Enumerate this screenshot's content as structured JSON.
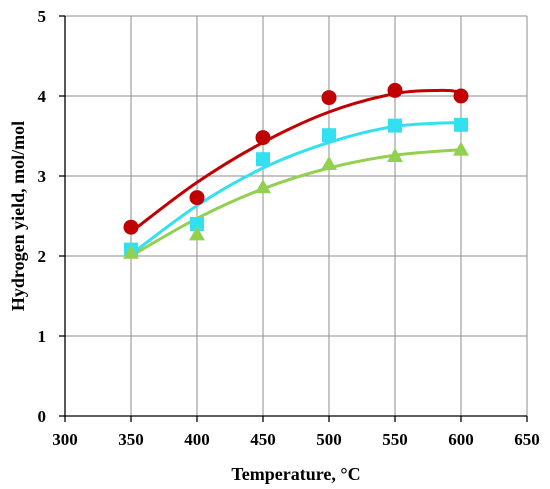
{
  "chart_data": {
    "type": "scatter",
    "xlabel": "Temperature, °C",
    "ylabel": "Hydrogen yield, mol/mol",
    "xlim": [
      300,
      650
    ],
    "ylim": [
      0,
      5
    ],
    "xticks": [
      300,
      350,
      400,
      450,
      500,
      550,
      600,
      650
    ],
    "yticks": [
      0,
      1,
      2,
      3,
      4,
      5
    ],
    "grid": true,
    "legend": "none",
    "series": [
      {
        "marker": "circle",
        "color": "#C00000",
        "x": [
          350,
          400,
          450,
          500,
          550,
          600
        ],
        "values": [
          2.36,
          2.73,
          3.48,
          3.98,
          4.07,
          4.0
        ],
        "trend": [
          [
            350,
            2.3
          ],
          [
            400,
            2.92
          ],
          [
            450,
            3.42
          ],
          [
            500,
            3.8
          ],
          [
            550,
            4.03
          ],
          [
            585,
            4.07
          ],
          [
            600,
            4.05
          ]
        ]
      },
      {
        "marker": "square",
        "color": "#33E0F0",
        "x": [
          350,
          400,
          450,
          500,
          550,
          600
        ],
        "values": [
          2.08,
          2.4,
          3.21,
          3.51,
          3.63,
          3.64
        ],
        "trend": [
          [
            350,
            2.02
          ],
          [
            400,
            2.63
          ],
          [
            450,
            3.1
          ],
          [
            500,
            3.42
          ],
          [
            550,
            3.62
          ],
          [
            600,
            3.67
          ]
        ]
      },
      {
        "marker": "triangle",
        "color": "#92D050",
        "x": [
          350,
          400,
          450,
          500,
          550,
          600
        ],
        "values": [
          2.04,
          2.27,
          2.86,
          3.15,
          3.25,
          3.33
        ],
        "trend": [
          [
            350,
            2.0
          ],
          [
            400,
            2.47
          ],
          [
            450,
            2.84
          ],
          [
            500,
            3.1
          ],
          [
            550,
            3.26
          ],
          [
            600,
            3.33
          ]
        ]
      }
    ]
  }
}
